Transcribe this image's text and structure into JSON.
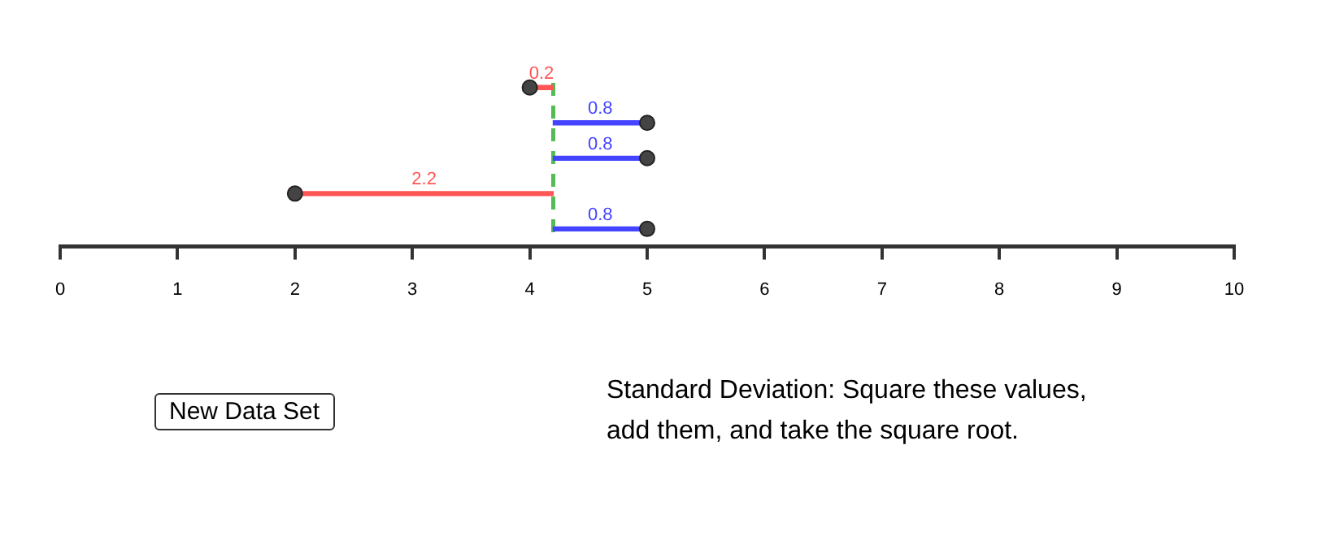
{
  "chart_data": {
    "type": "bar",
    "orientation": "horizontal",
    "categories": [
      null,
      null,
      null,
      null,
      null
    ],
    "series": [
      {
        "base": [
          4.2,
          4.2,
          4.2,
          4.2,
          4.2
        ],
        "values": [
          -0.2,
          0.8,
          0.8,
          -2.2,
          0.8
        ],
        "colors": [
          "#ff5555",
          "#4444ff",
          "#4444ff",
          "#ff5555",
          "#4444ff"
        ],
        "value_labels": [
          "0.2",
          "0.8",
          "0.8",
          "2.2",
          "0.8"
        ]
      },
      {
        "type": "scatter",
        "values": [
          4,
          5,
          5,
          2,
          5
        ],
        "color": "#444444",
        "marker": "circle"
      }
    ],
    "grid": false,
    "legend": false,
    "xlim": [
      0,
      10
    ],
    "xticks": [
      0,
      1,
      2,
      3,
      4,
      5,
      6,
      7,
      8,
      9,
      10
    ],
    "ref_lines": [
      {
        "axis": "x",
        "value": 4.2,
        "color": "#55bb55",
        "line_style": "dashed"
      }
    ],
    "annotations": [
      "New Data Set",
      "Standard Deviation: Square these values, add them, and take the square root."
    ]
  }
}
